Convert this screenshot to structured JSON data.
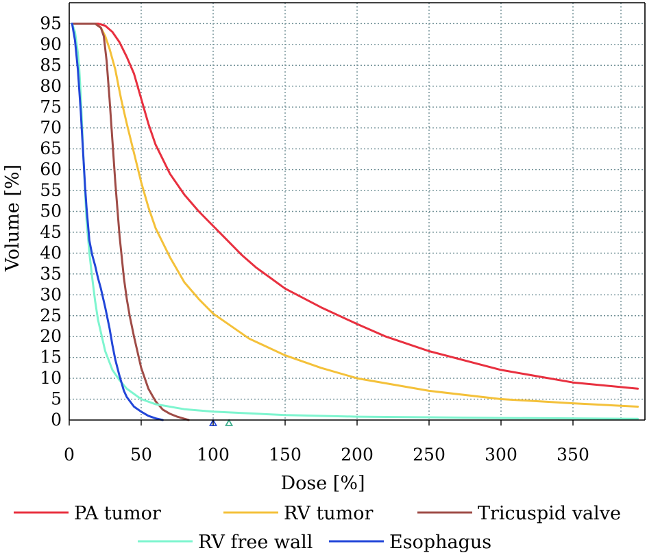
{
  "chart_data": {
    "type": "line",
    "xlabel": "Dose [%]",
    "ylabel": "Volume [%]",
    "xlim": [
      0,
      400
    ],
    "ylim": [
      0,
      100
    ],
    "xticks": [
      0,
      50,
      100,
      150,
      200,
      250,
      300,
      350
    ],
    "yticks": [
      0,
      5,
      10,
      15,
      20,
      25,
      30,
      35,
      40,
      45,
      50,
      55,
      60,
      65,
      70,
      75,
      80,
      85,
      90,
      95
    ],
    "grid": true,
    "legend_position": "bottom",
    "series": [
      {
        "name": "PA tumor",
        "color": "#e8303f",
        "x": [
          2,
          10,
          20,
          25,
          30,
          35,
          40,
          45,
          50,
          55,
          60,
          70,
          80,
          90,
          100,
          110,
          120,
          130,
          140,
          150,
          175,
          200,
          220,
          250,
          300,
          350,
          395
        ],
        "y": [
          95,
          95,
          95,
          94.5,
          93,
          90.5,
          87,
          83,
          77,
          71,
          66,
          59,
          54,
          50,
          46.5,
          43,
          39.5,
          36.5,
          34,
          31.5,
          27,
          23,
          20,
          16.5,
          12,
          9,
          7.5
        ]
      },
      {
        "name": "RV tumor",
        "color": "#f4c13a",
        "x": [
          2,
          10,
          18,
          22,
          25,
          28,
          32,
          36,
          40,
          45,
          50,
          55,
          60,
          70,
          80,
          90,
          100,
          125,
          150,
          175,
          200,
          250,
          300,
          350,
          395
        ],
        "y": [
          95,
          95,
          95,
          94,
          92,
          89,
          84,
          77,
          71,
          64,
          57,
          51,
          46,
          39,
          33,
          29,
          25.5,
          19.5,
          15.5,
          12.5,
          10,
          7,
          5,
          4,
          3.2
        ]
      },
      {
        "name": "Tricuspid valve",
        "color": "#9f4c47",
        "x": [
          2,
          10,
          18,
          22,
          24,
          25,
          26,
          28,
          30,
          32,
          35,
          38,
          40,
          42,
          45,
          48,
          50,
          55,
          60,
          65,
          70,
          75,
          80,
          83
        ],
        "y": [
          95,
          95,
          95,
          94,
          92,
          89,
          86,
          77,
          67,
          57,
          44,
          34,
          29,
          25,
          20,
          15.5,
          12.5,
          7.5,
          4.5,
          2.5,
          1.5,
          0.8,
          0.3,
          0
        ]
      },
      {
        "name": "RV free wall",
        "color": "#7ef5cf",
        "x": [
          2,
          4,
          6,
          7,
          8,
          9,
          10,
          11,
          12,
          14,
          16,
          18,
          20,
          25,
          30,
          35,
          40,
          50,
          60,
          80,
          100,
          150,
          200,
          300,
          395
        ],
        "y": [
          95,
          93,
          88,
          84,
          78,
          70,
          62,
          55,
          48,
          40,
          34,
          28.5,
          24,
          16.5,
          12,
          9.5,
          7.5,
          5,
          3.8,
          2.6,
          2,
          1.2,
          0.8,
          0.5,
          0.3
        ]
      },
      {
        "name": "Esophagus",
        "color": "#2246d8",
        "x": [
          2,
          4,
          6,
          8,
          9,
          10,
          11,
          12,
          13,
          14,
          16,
          18,
          20,
          22,
          25,
          28,
          30,
          32,
          35,
          38,
          40,
          45,
          50,
          55,
          60,
          65
        ],
        "y": [
          95,
          91,
          84,
          74,
          68,
          62,
          56,
          51,
          47,
          43,
          39.5,
          37,
          34,
          31.5,
          27,
          22,
          18,
          14.5,
          10.5,
          7,
          5.5,
          3.2,
          2,
          1,
          0.4,
          0
        ]
      }
    ],
    "markers": [
      {
        "x": 100,
        "color": "#2246d8"
      },
      {
        "x": 111,
        "color": "#3fae8e"
      }
    ]
  }
}
